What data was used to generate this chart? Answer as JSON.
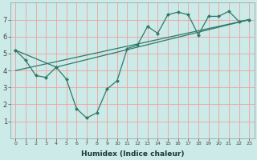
{
  "xlabel": "Humidex (Indice chaleur)",
  "background_color": "#cceae7",
  "grid_color": "#f0a0a0",
  "line_color": "#2d7a6a",
  "line1_x": [
    0,
    1,
    2,
    3,
    4,
    5,
    6,
    7,
    8,
    9,
    10,
    11,
    12,
    13,
    14,
    15,
    16,
    17,
    18,
    19,
    20,
    21,
    22,
    23
  ],
  "line1_y": [
    5.2,
    4.6,
    3.7,
    3.6,
    4.2,
    3.5,
    1.75,
    1.2,
    1.5,
    2.9,
    3.4,
    5.3,
    5.5,
    6.6,
    6.2,
    7.3,
    7.45,
    7.3,
    6.1,
    7.2,
    7.2,
    7.5,
    6.9,
    7.0
  ],
  "line3_x": [
    0,
    4,
    23
  ],
  "line3_y": [
    5.2,
    4.2,
    7.0
  ],
  "line4_x": [
    0,
    23
  ],
  "line4_y": [
    4.0,
    7.0
  ],
  "xlim": [
    -0.5,
    23.5
  ],
  "ylim": [
    0,
    8
  ],
  "yticks": [
    1,
    2,
    3,
    4,
    5,
    6,
    7
  ],
  "xticks": [
    0,
    1,
    2,
    3,
    4,
    5,
    6,
    7,
    8,
    9,
    10,
    11,
    12,
    13,
    14,
    15,
    16,
    17,
    18,
    19,
    20,
    21,
    22,
    23
  ],
  "xtick_labels": [
    "0",
    "1",
    "2",
    "3",
    "4",
    "5",
    "6",
    "7",
    "8",
    "9",
    "10",
    "11",
    "12",
    "13",
    "14",
    "15",
    "16",
    "17",
    "18",
    "19",
    "20",
    "21",
    "22",
    "23"
  ]
}
